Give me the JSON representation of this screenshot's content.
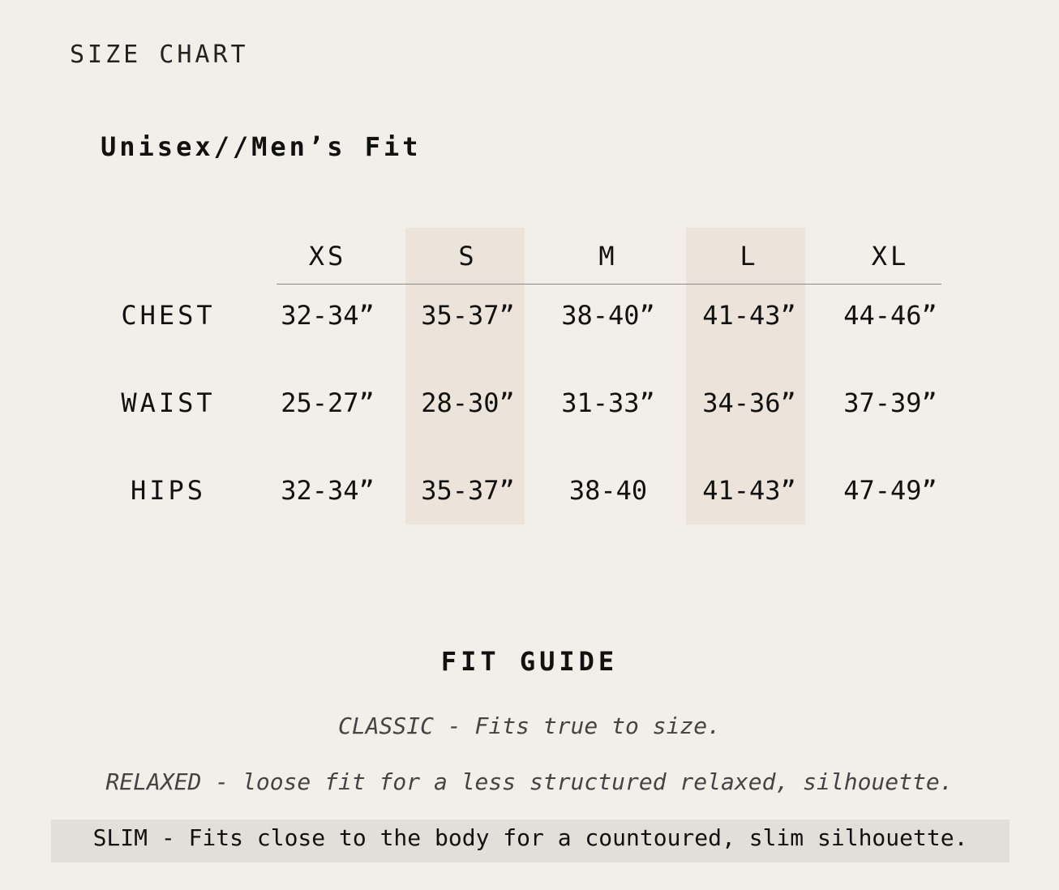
{
  "title": "SIZE CHART",
  "subtitle": "Unisex//Men’s Fit",
  "colors": {
    "background": "#f2efea",
    "highlight_column": "#ece4da",
    "slim_highlight": "#e2dfdb"
  },
  "table": {
    "sizes": [
      "XS",
      "S",
      "M",
      "L",
      "XL"
    ],
    "highlighted_sizes": [
      "S",
      "L"
    ],
    "rows": [
      {
        "label": "CHEST",
        "values": [
          "32-34”",
          "35-37”",
          "38-40”",
          "41-43”",
          "44-46”"
        ]
      },
      {
        "label": "WAIST",
        "values": [
          "25-27”",
          "28-30”",
          "31-33”",
          "34-36”",
          "37-39”"
        ]
      },
      {
        "label": "HIPS",
        "values": [
          "32-34”",
          "35-37”",
          "38-40",
          "41-43”",
          "47-49”"
        ]
      }
    ]
  },
  "fit_guide": {
    "title": "FIT GUIDE",
    "classic": "CLASSIC - Fits true to size.",
    "relaxed": "RELAXED - loose fit for a less structured relaxed, silhouette.",
    "slim": "SLIM - Fits close to the body for a countoured, slim silhouette."
  }
}
